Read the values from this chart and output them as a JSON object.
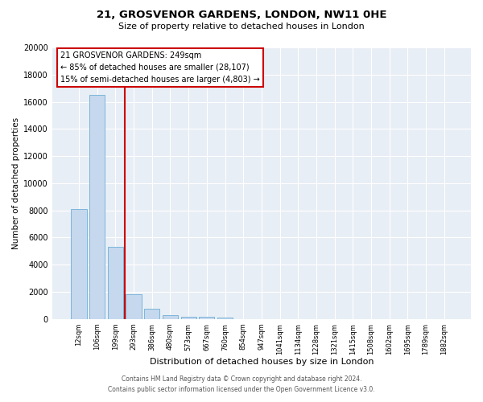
{
  "title": "21, GROSVENOR GARDENS, LONDON, NW11 0HE",
  "subtitle": "Size of property relative to detached houses in London",
  "xlabel": "Distribution of detached houses by size in London",
  "ylabel": "Number of detached properties",
  "bar_values": [
    8100,
    16500,
    5300,
    1850,
    750,
    275,
    175,
    150,
    125,
    0,
    0,
    0,
    0,
    0,
    0,
    0,
    0,
    0,
    0,
    0,
    0
  ],
  "bar_labels": [
    "12sqm",
    "106sqm",
    "199sqm",
    "293sqm",
    "386sqm",
    "480sqm",
    "573sqm",
    "667sqm",
    "760sqm",
    "854sqm",
    "947sqm",
    "1041sqm",
    "1134sqm",
    "1228sqm",
    "1321sqm",
    "1415sqm",
    "1508sqm",
    "1602sqm",
    "1695sqm",
    "1789sqm",
    "1882sqm"
  ],
  "ylim": [
    0,
    20000
  ],
  "yticks": [
    0,
    2000,
    4000,
    6000,
    8000,
    10000,
    12000,
    14000,
    16000,
    18000,
    20000
  ],
  "bar_color": "#c5d8ee",
  "bar_edge_color": "#6baed6",
  "vline_color": "#cc0000",
  "annotation_title": "21 GROSVENOR GARDENS: 249sqm",
  "annotation_line1": "← 85% of detached houses are smaller (28,107)",
  "annotation_line2": "15% of semi-detached houses are larger (4,803) →",
  "annotation_box_color": "#cc0000",
  "footer_line1": "Contains HM Land Registry data © Crown copyright and database right 2024.",
  "footer_line2": "Contains public sector information licensed under the Open Government Licence v3.0.",
  "background_color": "#ffffff",
  "plot_bg_color": "#e8eef5"
}
